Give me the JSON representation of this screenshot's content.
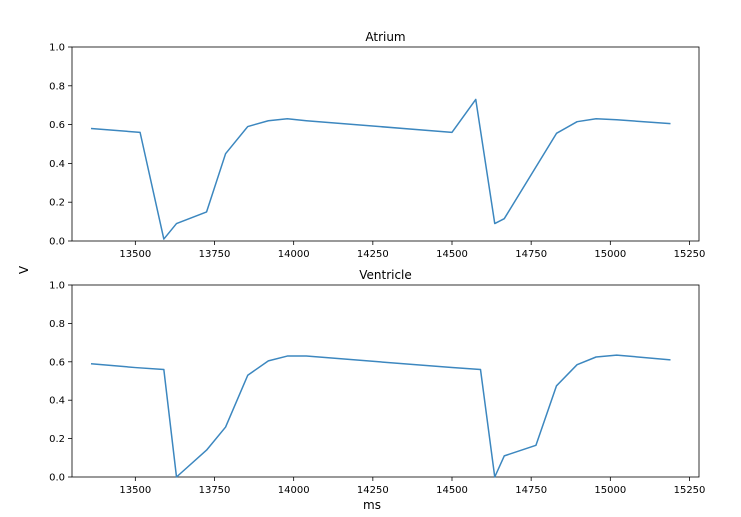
{
  "figure": {
    "ylabel": "V",
    "xlabel": "ms"
  },
  "chart_data": [
    {
      "type": "line",
      "title": "Atrium",
      "xlabel": "",
      "ylabel": "",
      "xlim": [
        13300,
        15280
      ],
      "ylim": [
        0,
        1.0
      ],
      "xticks": [
        13500,
        13750,
        14000,
        14250,
        14500,
        14750,
        15000,
        15250
      ],
      "yticks": [
        0.0,
        0.2,
        0.4,
        0.6,
        0.8,
        1.0
      ],
      "grid": false,
      "series": [
        {
          "color": "#3c87bf",
          "x": [
            13360,
            13515,
            13590,
            13630,
            13725,
            13785,
            13855,
            13920,
            13980,
            14040,
            14500,
            14575,
            14635,
            14665,
            14830,
            14895,
            14955,
            15020,
            15190
          ],
          "y": [
            0.58,
            0.56,
            0.01,
            0.09,
            0.15,
            0.45,
            0.59,
            0.62,
            0.63,
            0.62,
            0.56,
            0.73,
            0.09,
            0.115,
            0.555,
            0.615,
            0.63,
            0.625,
            0.605
          ]
        }
      ]
    },
    {
      "type": "line",
      "title": "Ventricle",
      "xlabel": "ms",
      "ylabel": "",
      "xlim": [
        13300,
        15280
      ],
      "ylim": [
        0,
        1.0
      ],
      "xticks": [
        13500,
        13750,
        14000,
        14250,
        14500,
        14750,
        15000,
        15250
      ],
      "yticks": [
        0.0,
        0.2,
        0.4,
        0.6,
        0.8,
        1.0
      ],
      "grid": false,
      "series": [
        {
          "color": "#3c87bf",
          "x": [
            13360,
            13500,
            13590,
            13630,
            13725,
            13785,
            13855,
            13920,
            13980,
            14040,
            14500,
            14590,
            14635,
            14665,
            14765,
            14830,
            14895,
            14955,
            15020,
            15190
          ],
          "y": [
            0.59,
            0.57,
            0.56,
            0.0,
            0.14,
            0.26,
            0.53,
            0.605,
            0.63,
            0.63,
            0.57,
            0.56,
            0.0,
            0.11,
            0.165,
            0.475,
            0.585,
            0.625,
            0.635,
            0.61
          ]
        }
      ]
    }
  ]
}
